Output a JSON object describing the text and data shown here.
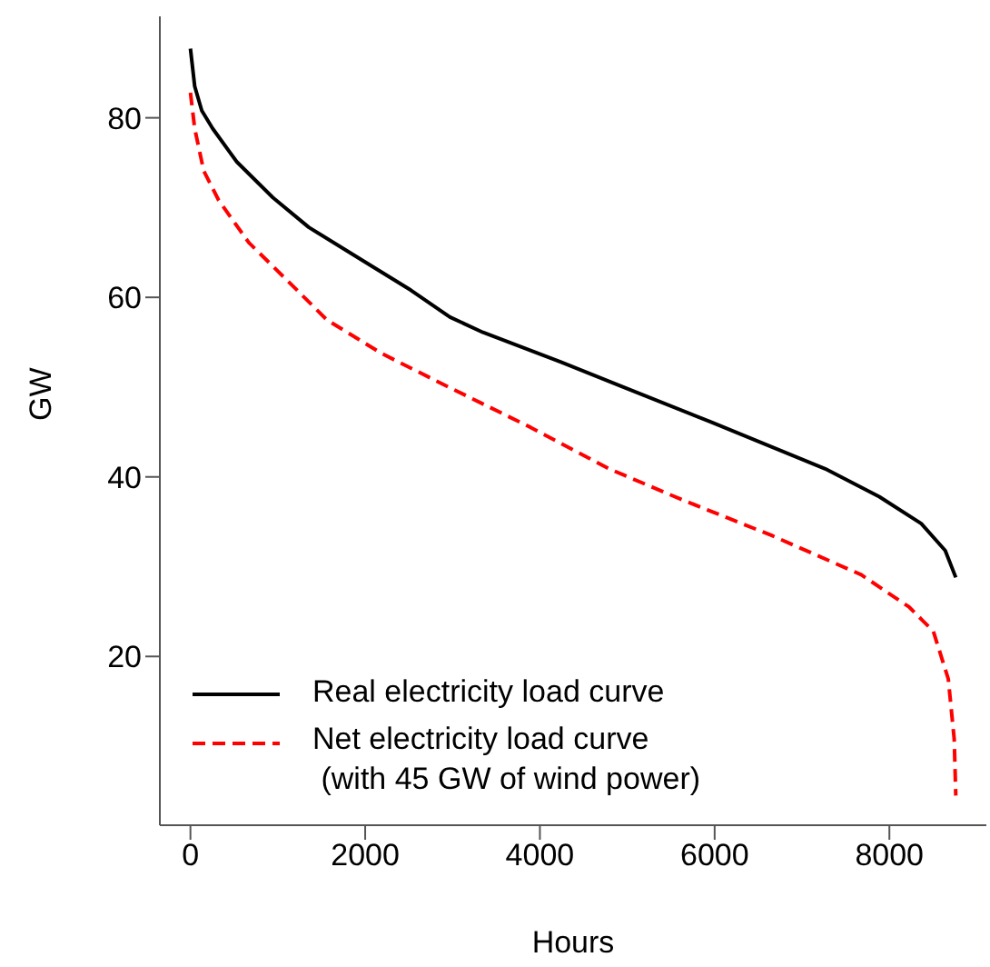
{
  "chart_data": {
    "type": "line",
    "xlabel": "Hours",
    "ylabel": "GW",
    "xlim": [
      -350,
      9110
    ],
    "ylim": [
      1.2,
      91.3
    ],
    "xticks": [
      0,
      2000,
      4000,
      6000,
      8000
    ],
    "yticks": [
      20,
      40,
      60,
      80
    ],
    "grid": false,
    "legend": "bottom left",
    "marker": "none",
    "series": [
      {
        "name": "Real electricity load curve",
        "color": "#000000",
        "line_style": "solid",
        "x": [
          0,
          49,
          130,
          255,
          530,
          945,
          1355,
          1973,
          2523,
          2970,
          3348,
          4241,
          4928,
          5959,
          7265,
          7884,
          8365,
          8639,
          8760
        ],
        "values": [
          87.7,
          83.5,
          80.8,
          78.8,
          75.1,
          71.1,
          67.8,
          64.1,
          60.8,
          57.8,
          56.1,
          52.8,
          50.1,
          46.1,
          40.9,
          37.8,
          34.8,
          31.8,
          28.8
        ]
      },
      {
        "name": "Net electricity load curve\n (with 45 GW of wind power)",
        "color": "#ff0000",
        "line_style": "dashed",
        "x": [
          0,
          49,
          152,
          324,
          668,
          1148,
          1561,
          2179,
          2936,
          3897,
          4792,
          5616,
          6647,
          7678,
          8227,
          8503,
          8674,
          8742,
          8760
        ],
        "values": [
          82.8,
          78.8,
          74.1,
          70.8,
          66.1,
          61.5,
          57.5,
          53.8,
          50.1,
          45.5,
          40.9,
          37.5,
          33.5,
          29.1,
          25.5,
          22.8,
          17.5,
          10.8,
          4.5
        ]
      }
    ]
  }
}
